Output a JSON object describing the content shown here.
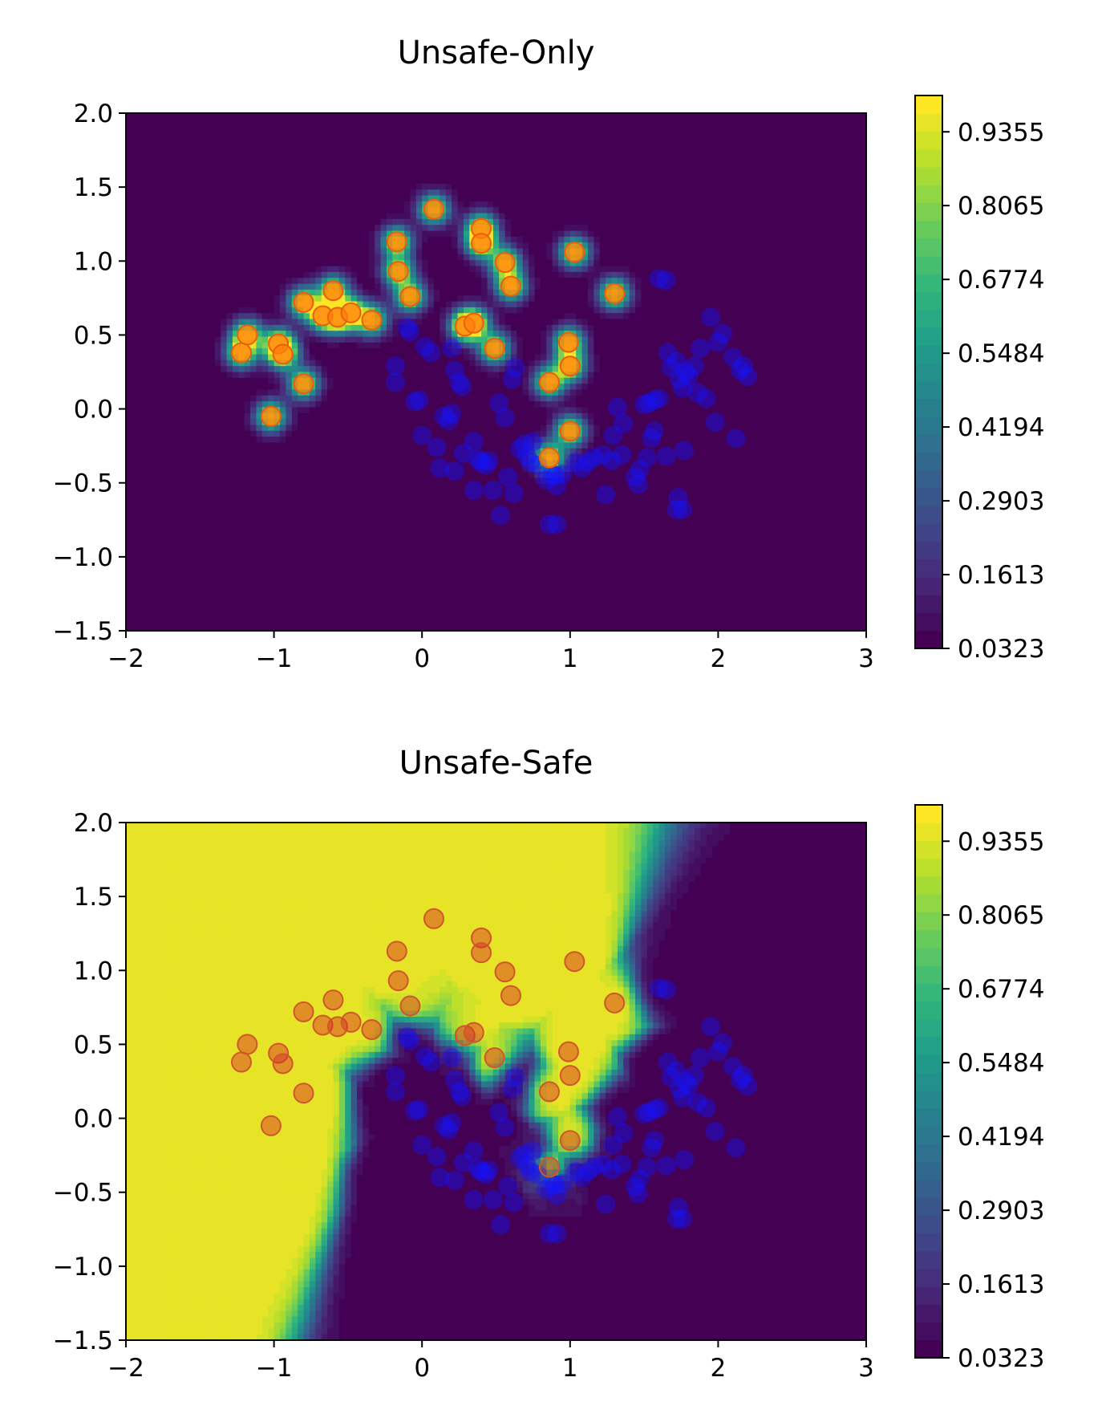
{
  "chart_data": [
    {
      "type": "contour",
      "title": "Unsafe-Only",
      "xlabel": "",
      "ylabel": "",
      "xlim": [
        -2,
        3
      ],
      "ylim": [
        -1.5,
        2.0
      ],
      "x_ticks": [
        "−2",
        "−1",
        "0",
        "1",
        "2",
        "3"
      ],
      "y_ticks": [
        "−1.5",
        "−1.0",
        "−0.5",
        "0.0",
        "0.5",
        "1.0",
        "1.5",
        "2.0"
      ],
      "colorbar": {
        "ticks": [
          "0.0323",
          "0.1613",
          "0.2903",
          "0.4194",
          "0.5484",
          "0.6774",
          "0.8065",
          "0.9355"
        ],
        "range": [
          0.0323,
          0.999
        ],
        "colormap": "viridis"
      },
      "surface_model": "rbf-around-unsafe",
      "unsafe_marker_color": "#ff7f0e"
    },
    {
      "type": "contour",
      "title": "Unsafe-Safe",
      "xlabel": "",
      "ylabel": "",
      "xlim": [
        -2,
        3
      ],
      "ylim": [
        -1.5,
        2.0
      ],
      "x_ticks": [
        "−2",
        "−1",
        "0",
        "1",
        "2",
        "3"
      ],
      "y_ticks": [
        "−1.5",
        "−1.0",
        "−0.5",
        "0.0",
        "0.5",
        "1.0",
        "1.5",
        "2.0"
      ],
      "colorbar": {
        "ticks": [
          "0.0323",
          "0.1613",
          "0.2903",
          "0.4194",
          "0.5484",
          "0.6774",
          "0.8065",
          "0.9355"
        ],
        "range": [
          0.0323,
          0.999
        ],
        "colormap": "viridis"
      },
      "surface_model": "nearest-neighbor-unsafe-vs-safe",
      "unsafe_marker_color": "#d62728"
    }
  ],
  "points": {
    "unsafe": [
      [
        -1.22,
        0.38
      ],
      [
        -1.18,
        0.5
      ],
      [
        -0.97,
        0.44
      ],
      [
        -0.94,
        0.37
      ],
      [
        -1.02,
        -0.05
      ],
      [
        -0.8,
        0.17
      ],
      [
        -0.8,
        0.72
      ],
      [
        -0.67,
        0.63
      ],
      [
        -0.6,
        0.8
      ],
      [
        -0.57,
        0.62
      ],
      [
        -0.48,
        0.65
      ],
      [
        -0.34,
        0.6
      ],
      [
        -0.17,
        1.13
      ],
      [
        -0.16,
        0.93
      ],
      [
        -0.08,
        0.76
      ],
      [
        0.08,
        1.35
      ],
      [
        0.29,
        0.56
      ],
      [
        0.35,
        0.58
      ],
      [
        0.4,
        1.22
      ],
      [
        0.4,
        1.12
      ],
      [
        0.49,
        0.41
      ],
      [
        0.56,
        0.99
      ],
      [
        0.6,
        0.83
      ],
      [
        0.86,
        0.18
      ],
      [
        0.86,
        -0.33
      ],
      [
        0.99,
        0.45
      ],
      [
        1.0,
        0.29
      ],
      [
        1.0,
        -0.15
      ],
      [
        1.03,
        1.06
      ],
      [
        1.3,
        0.78
      ]
    ],
    "safe": [
      [
        -0.1,
        0.55
      ],
      [
        -0.08,
        0.52
      ],
      [
        0.02,
        0.42
      ],
      [
        0.06,
        0.38
      ],
      [
        -0.18,
        0.29
      ],
      [
        -0.18,
        0.18
      ],
      [
        -0.05,
        0.05
      ],
      [
        -0.02,
        0.06
      ],
      [
        0.2,
        0.41
      ],
      [
        0.22,
        0.26
      ],
      [
        0.25,
        0.18
      ],
      [
        0.27,
        0.15
      ],
      [
        0.15,
        -0.05
      ],
      [
        0.18,
        -0.08
      ],
      [
        0.2,
        -0.03
      ],
      [
        0.0,
        -0.18
      ],
      [
        0.1,
        -0.26
      ],
      [
        0.12,
        -0.4
      ],
      [
        0.22,
        -0.42
      ],
      [
        0.28,
        -0.3
      ],
      [
        0.35,
        -0.22
      ],
      [
        0.38,
        -0.34
      ],
      [
        0.4,
        -0.36
      ],
      [
        0.43,
        -0.38
      ],
      [
        0.45,
        -0.35
      ],
      [
        0.35,
        -0.55
      ],
      [
        0.48,
        -0.55
      ],
      [
        0.53,
        -0.72
      ],
      [
        0.58,
        -0.46
      ],
      [
        0.62,
        -0.57
      ],
      [
        0.66,
        -0.27
      ],
      [
        0.69,
        -0.24
      ],
      [
        0.71,
        -0.32
      ],
      [
        0.73,
        -0.36
      ],
      [
        0.75,
        -0.22
      ],
      [
        0.78,
        -0.38
      ],
      [
        0.84,
        -0.48
      ],
      [
        0.88,
        -0.45
      ],
      [
        0.9,
        -0.45
      ],
      [
        0.91,
        -0.52
      ],
      [
        0.86,
        -0.78
      ],
      [
        0.91,
        -0.78
      ],
      [
        0.95,
        -0.44
      ],
      [
        1.04,
        -0.36
      ],
      [
        1.08,
        -0.4
      ],
      [
        1.12,
        -0.36
      ],
      [
        1.16,
        -0.33
      ],
      [
        1.22,
        -0.31
      ],
      [
        1.28,
        -0.35
      ],
      [
        1.35,
        -0.31
      ],
      [
        1.24,
        -0.58
      ],
      [
        1.44,
        -0.46
      ],
      [
        1.46,
        -0.51
      ],
      [
        1.47,
        -0.41
      ],
      [
        1.52,
        -0.33
      ],
      [
        1.55,
        -0.2
      ],
      [
        1.57,
        -0.15
      ],
      [
        1.32,
        0.01
      ],
      [
        1.36,
        -0.1
      ],
      [
        1.5,
        0.03
      ],
      [
        1.53,
        0.04
      ],
      [
        1.57,
        0.06
      ],
      [
        1.6,
        0.07
      ],
      [
        1.66,
        0.38
      ],
      [
        1.68,
        0.28
      ],
      [
        1.72,
        0.32
      ],
      [
        1.74,
        0.2
      ],
      [
        1.76,
        0.14
      ],
      [
        1.78,
        0.25
      ],
      [
        1.8,
        0.22
      ],
      [
        1.84,
        0.29
      ],
      [
        1.86,
        0.11
      ],
      [
        1.88,
        0.41
      ],
      [
        1.92,
        0.07
      ],
      [
        1.95,
        0.62
      ],
      [
        1.98,
        -0.09
      ],
      [
        2.0,
        0.45
      ],
      [
        2.03,
        0.51
      ],
      [
        2.1,
        0.35
      ],
      [
        2.12,
        -0.2
      ],
      [
        2.15,
        0.26
      ],
      [
        2.17,
        0.29
      ],
      [
        2.2,
        0.22
      ],
      [
        1.77,
        -0.28
      ],
      [
        1.73,
        -0.6
      ],
      [
        1.72,
        -0.68
      ],
      [
        1.76,
        -0.68
      ],
      [
        1.6,
        0.88
      ],
      [
        1.65,
        0.87
      ],
      [
        0.63,
        0.28
      ],
      [
        0.61,
        0.2
      ],
      [
        0.56,
        -0.06
      ],
      [
        1.65,
        -0.32
      ],
      [
        1.29,
        -0.18
      ],
      [
        0.52,
        0.04
      ]
    ]
  }
}
